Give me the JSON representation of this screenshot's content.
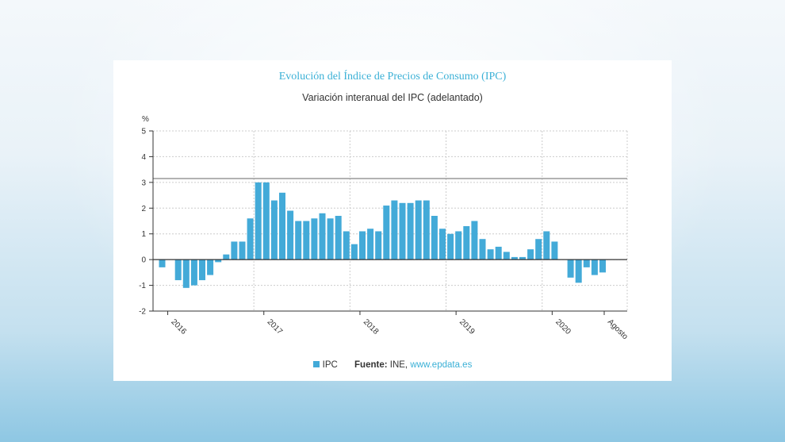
{
  "header": {
    "title": "Evolución del Índice de Precios de Consumo (IPC)",
    "subtitle": "Variación interanual del IPC (adelantado)"
  },
  "legend": {
    "series_label": "IPC",
    "source_label": "Fuente:",
    "source_text": "INE, ",
    "source_link": "www.epdata.es"
  },
  "colors": {
    "bar": "#43aad8",
    "grid": "#cccccc",
    "axis": "#333333",
    "reference": "#999999"
  },
  "chart_data": {
    "type": "bar",
    "ylabel": "%",
    "ylim": [
      -2,
      5
    ],
    "yticks": [
      -2,
      -1,
      0,
      1,
      2,
      3,
      4,
      5
    ],
    "reference_line": 3.15,
    "x_tick_labels": [
      "2016",
      "2017",
      "2018",
      "2019",
      "2020",
      "Agosto"
    ],
    "categories": [
      "2016-01",
      "2016-02",
      "2016-03",
      "2016-04",
      "2016-05",
      "2016-06",
      "2016-07",
      "2016-08",
      "2016-09",
      "2016-10",
      "2016-11",
      "2016-12",
      "2017-01",
      "2017-02",
      "2017-03",
      "2017-04",
      "2017-05",
      "2017-06",
      "2017-07",
      "2017-08",
      "2017-09",
      "2017-10",
      "2017-11",
      "2017-12",
      "2018-01",
      "2018-02",
      "2018-03",
      "2018-04",
      "2018-05",
      "2018-06",
      "2018-07",
      "2018-08",
      "2018-09",
      "2018-10",
      "2018-11",
      "2018-12",
      "2019-01",
      "2019-02",
      "2019-03",
      "2019-04",
      "2019-05",
      "2019-06",
      "2019-07",
      "2019-08",
      "2019-09",
      "2019-10",
      "2019-11",
      "2019-12",
      "2020-01",
      "2020-02",
      "2020-03",
      "2020-04",
      "2020-05",
      "2020-06",
      "2020-07",
      "2020-08"
    ],
    "series": [
      {
        "name": "IPC",
        "values": [
          -0.3,
          0,
          -0.8,
          -1.1,
          -1.0,
          -0.8,
          -0.6,
          -0.1,
          0.2,
          0.7,
          0.7,
          1.6,
          3.0,
          3.0,
          2.3,
          2.6,
          1.9,
          1.5,
          1.5,
          1.6,
          1.8,
          1.6,
          1.7,
          1.1,
          0.6,
          1.1,
          1.2,
          1.1,
          2.1,
          2.3,
          2.2,
          2.2,
          2.3,
          2.3,
          1.7,
          1.2,
          1.0,
          1.1,
          1.3,
          1.5,
          0.8,
          0.4,
          0.5,
          0.3,
          0.1,
          0.1,
          0.4,
          0.8,
          1.1,
          0.7,
          0,
          -0.7,
          -0.9,
          -0.3,
          -0.6,
          -0.5
        ]
      }
    ]
  }
}
